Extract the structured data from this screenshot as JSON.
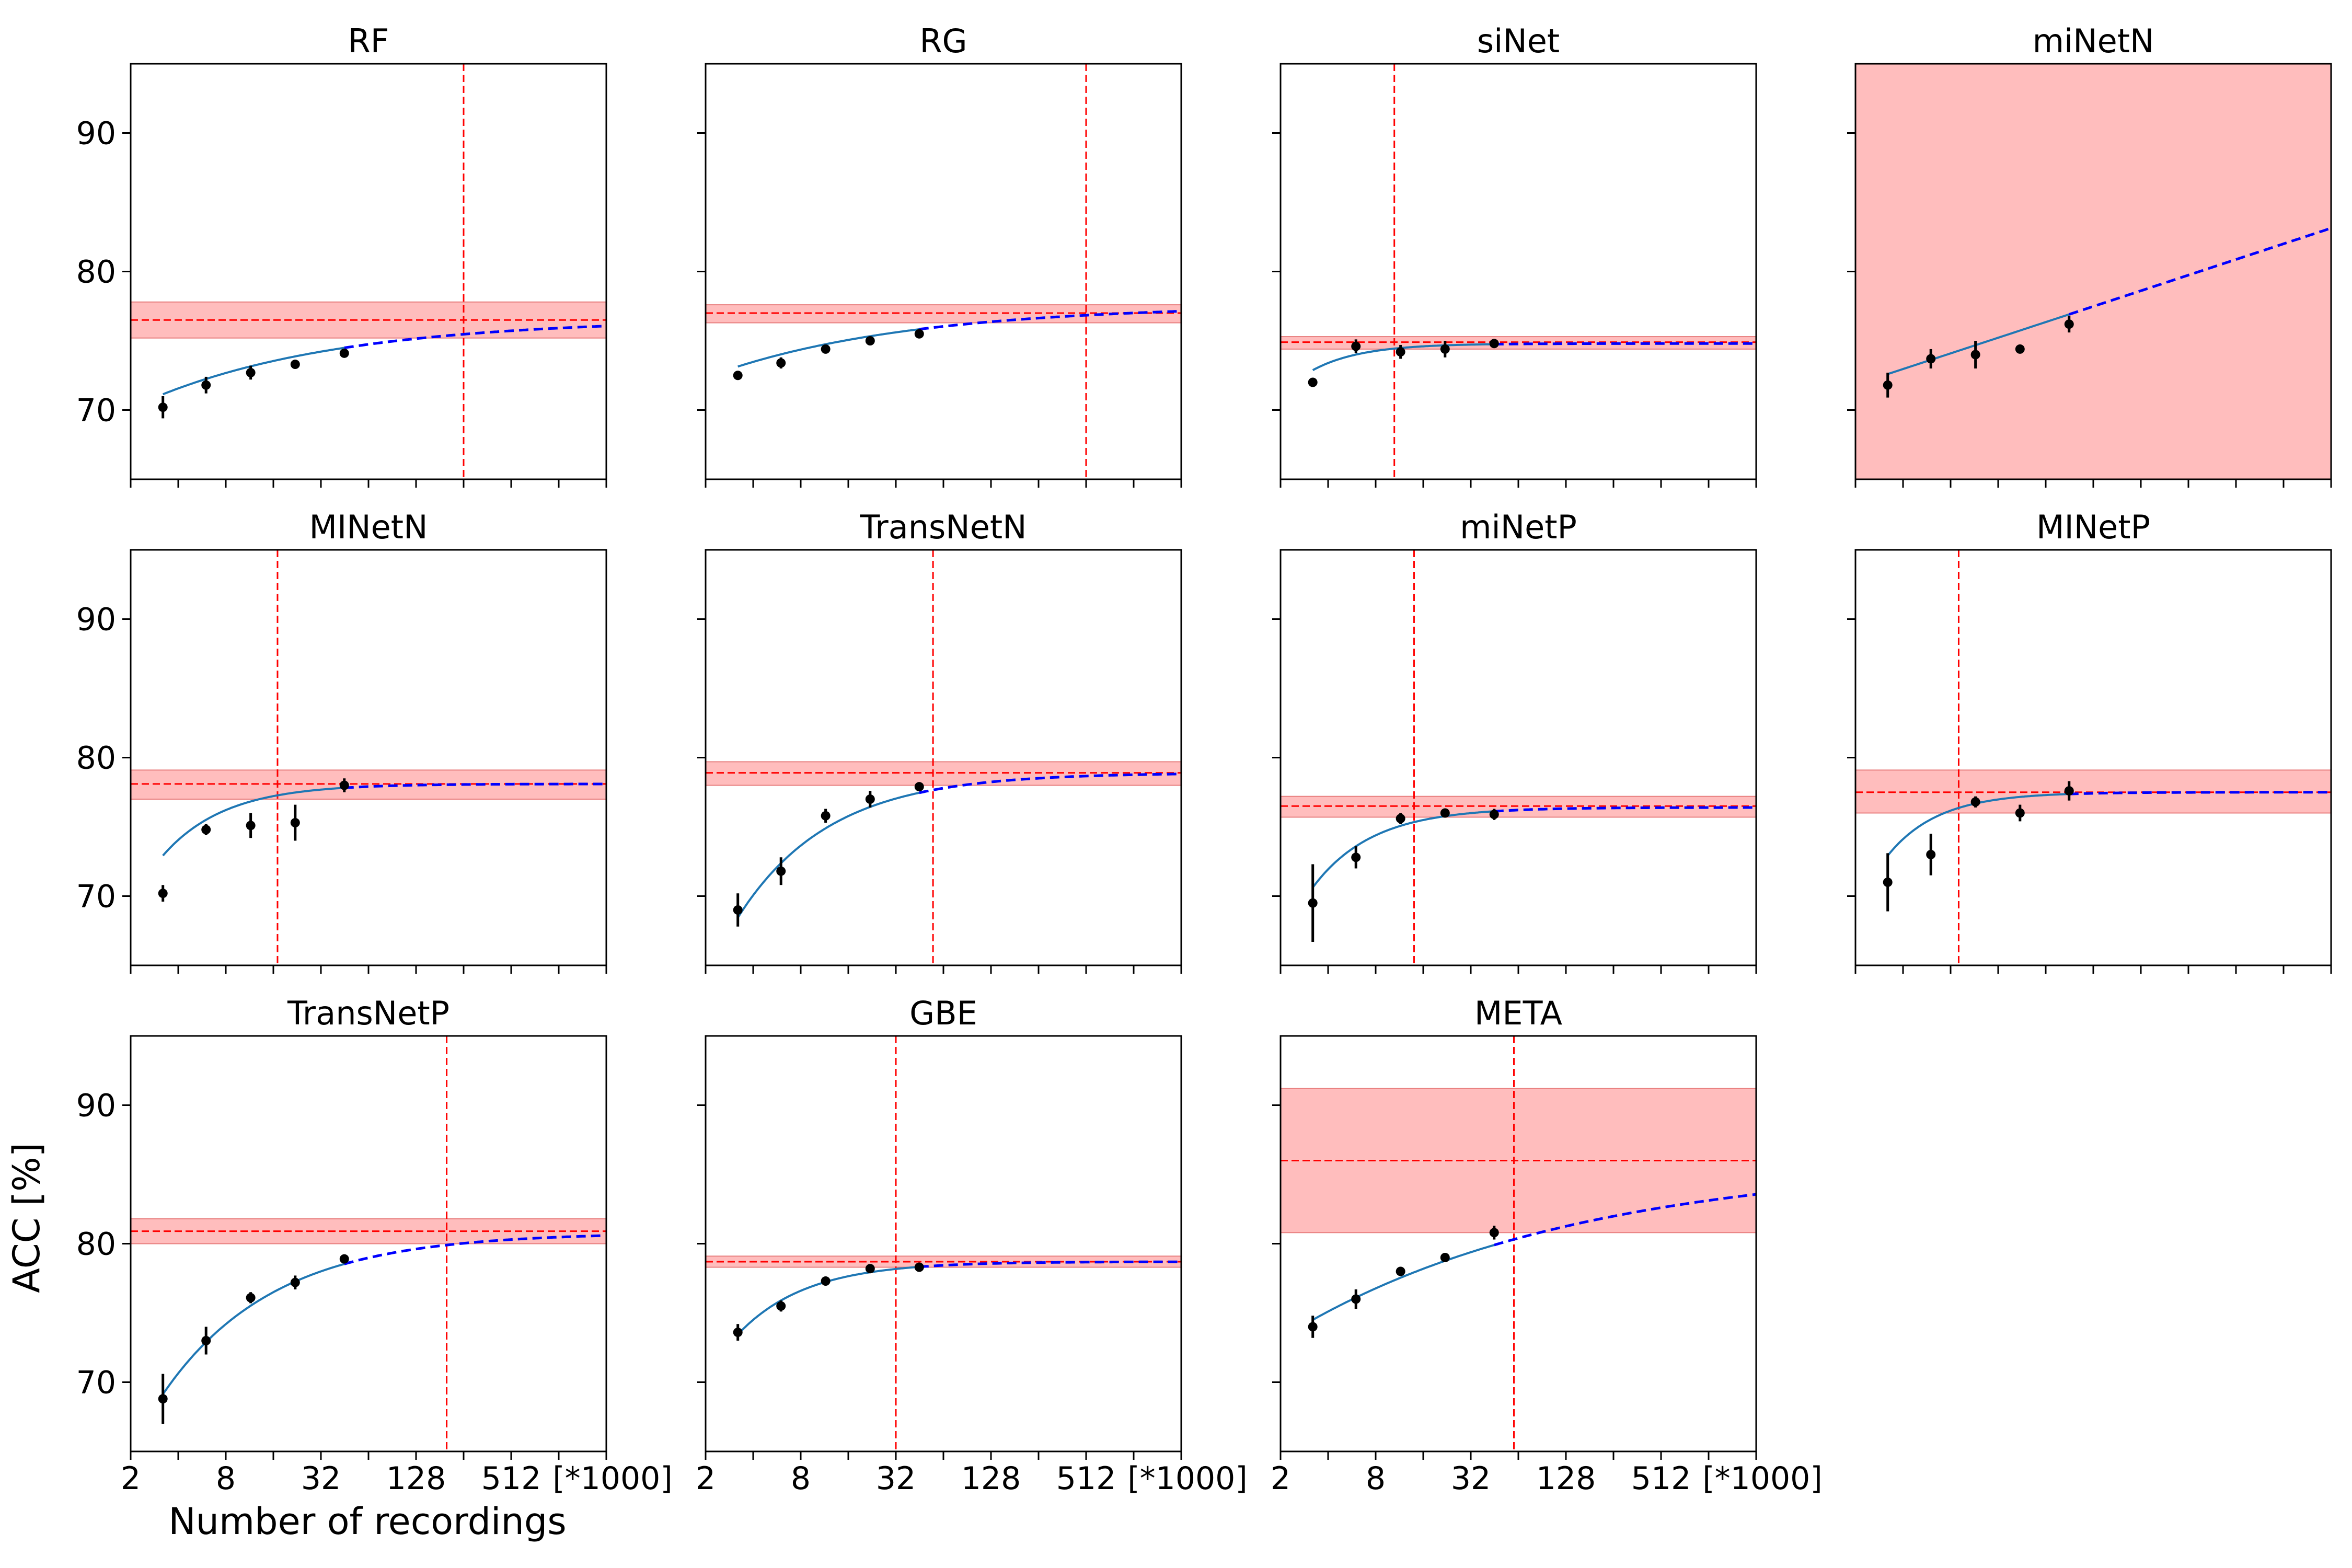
{
  "figure": {
    "xlabel": "Number of recordings",
    "ylabel": "ACC [%]"
  },
  "chart_data": {
    "type": "scatter",
    "x_scale": "log2",
    "x_unit_label": "[*1000]",
    "x_ticks": [
      2,
      8,
      32,
      128,
      512
    ],
    "x_tick_labels": [
      "2",
      "8",
      "32",
      "128",
      "512"
    ],
    "xlim": [
      2,
      2048
    ],
    "y_ticks": [
      70,
      80,
      90
    ],
    "y_tick_labels": [
      "70",
      "80",
      "90"
    ],
    "ylim": [
      65,
      95
    ],
    "grid": false,
    "colors": {
      "points": "#000000",
      "fit_line": "#1f77b4",
      "extrapolation": "#0000ff",
      "reference": "#ff0000",
      "band_fill": "#ff9999",
      "band_edge": "#e88080"
    },
    "panels": [
      {
        "title": "RF",
        "x": [
          3.2,
          6.0,
          11.5,
          22.0,
          45.0
        ],
        "y": [
          70.2,
          71.8,
          72.7,
          73.3,
          74.1
        ],
        "err": [
          0.8,
          0.6,
          0.5,
          0.3,
          0.2
        ],
        "fit": {
          "L": 76.6,
          "A": 8.3,
          "b": 0.36
        },
        "ref": 76.5,
        "band": [
          75.2,
          77.8
        ],
        "vline": 256
      },
      {
        "title": "RG",
        "x": [
          3.2,
          6.0,
          11.5,
          22.0,
          45.0
        ],
        "y": [
          72.5,
          73.4,
          74.4,
          75.0,
          75.5
        ],
        "err": [
          0.3,
          0.4,
          0.3,
          0.2,
          0.2
        ],
        "fit": {
          "L": 77.6,
          "A": 6.7,
          "b": 0.35
        },
        "ref": 77.0,
        "band": [
          76.3,
          77.6
        ],
        "vline": 512
      },
      {
        "title": "siNet",
        "x": [
          3.2,
          6.0,
          11.5,
          22.0,
          45.0
        ],
        "y": [
          72.0,
          74.6,
          74.2,
          74.4,
          74.8
        ],
        "err": [
          0.2,
          0.5,
          0.5,
          0.6,
          0.3
        ],
        "fit": {
          "L": 74.8,
          "A": 9.8,
          "b": 1.4
        },
        "ref": 74.9,
        "band": [
          74.4,
          75.3
        ],
        "vline": 10.5
      },
      {
        "title": "miNetN",
        "x": [
          3.2,
          6.0,
          11.5,
          22.0,
          45.0
        ],
        "y": [
          71.8,
          73.7,
          74.0,
          74.4,
          76.2
        ],
        "err": [
          0.9,
          0.7,
          1.0,
          0.3,
          0.6
        ],
        "linear": {
          "a": 70.7,
          "b": 1.13
        },
        "ref": null,
        "band": [
          65,
          95
        ],
        "vline": null
      },
      {
        "title": "MINetN",
        "x": [
          3.2,
          6.0,
          11.5,
          22.0,
          45.0
        ],
        "y": [
          70.2,
          74.8,
          75.1,
          75.3,
          78.0
        ],
        "err": [
          0.6,
          0.4,
          0.9,
          1.3,
          0.5
        ],
        "fit": {
          "L": 78.1,
          "A": 18.6,
          "b": 1.1
        },
        "ref": 78.1,
        "band": [
          77.0,
          79.1
        ],
        "vline": 17
      },
      {
        "title": "TransNetN",
        "x": [
          3.2,
          6.0,
          11.5,
          22.0,
          45.0
        ],
        "y": [
          69.0,
          71.8,
          75.8,
          77.0,
          77.9
        ],
        "err": [
          1.2,
          1.0,
          0.5,
          0.6,
          0.2
        ],
        "fit": {
          "L": 78.9,
          "A": 25.0,
          "b": 0.75
        },
        "ref": 78.9,
        "band": [
          78.0,
          79.7
        ],
        "vline": 55
      },
      {
        "title": "miNetP",
        "x": [
          3.2,
          6.0,
          11.5,
          22.0,
          45.0
        ],
        "y": [
          69.5,
          72.8,
          75.6,
          76.0,
          75.9
        ],
        "err": [
          2.8,
          0.8,
          0.4,
          0.3,
          0.4
        ],
        "fit": {
          "L": 76.4,
          "A": 22.0,
          "b": 1.15
        },
        "ref": 76.5,
        "band": [
          75.7,
          77.2
        ],
        "vline": 14
      },
      {
        "title": "MINetP",
        "x": [
          3.2,
          6.0,
          11.5,
          22.0,
          45.0
        ],
        "y": [
          71.0,
          73.0,
          76.8,
          76.0,
          77.6
        ],
        "err": [
          2.1,
          1.5,
          0.4,
          0.6,
          0.7
        ],
        "fit": {
          "L": 77.5,
          "A": 22.0,
          "b": 1.35
        },
        "ref": 77.5,
        "band": [
          76.0,
          79.1
        ],
        "vline": 9
      },
      {
        "title": "TransNetP",
        "x": [
          3.2,
          6.0,
          11.5,
          22.0,
          45.0
        ],
        "y": [
          68.8,
          73.0,
          76.1,
          77.2,
          78.9
        ],
        "err": [
          1.8,
          1.0,
          0.4,
          0.5,
          0.2
        ],
        "fit": {
          "L": 80.8,
          "A": 24.0,
          "b": 0.62
        },
        "ref": 80.9,
        "band": [
          80.0,
          81.8
        ],
        "vline": 200
      },
      {
        "title": "GBE",
        "x": [
          3.2,
          6.0,
          11.5,
          22.0,
          45.0
        ],
        "y": [
          73.6,
          75.5,
          77.3,
          78.2,
          78.3
        ],
        "err": [
          0.6,
          0.4,
          0.2,
          0.1,
          0.2
        ],
        "fit": {
          "L": 78.7,
          "A": 16.8,
          "b": 1.0
        },
        "ref": 78.7,
        "band": [
          78.3,
          79.1
        ],
        "vline": 32
      },
      {
        "title": "META",
        "x": [
          3.2,
          6.0,
          11.5,
          22.0,
          45.0
        ],
        "y": [
          74.0,
          76.0,
          78.0,
          79.0,
          80.8
        ],
        "err": [
          0.8,
          0.7,
          0.3,
          0.2,
          0.5
        ],
        "fit": {
          "L": 86.0,
          "A": 15.2,
          "b": 0.24
        },
        "ref": 86.0,
        "band": [
          80.8,
          91.2
        ],
        "vline": 60
      }
    ]
  }
}
